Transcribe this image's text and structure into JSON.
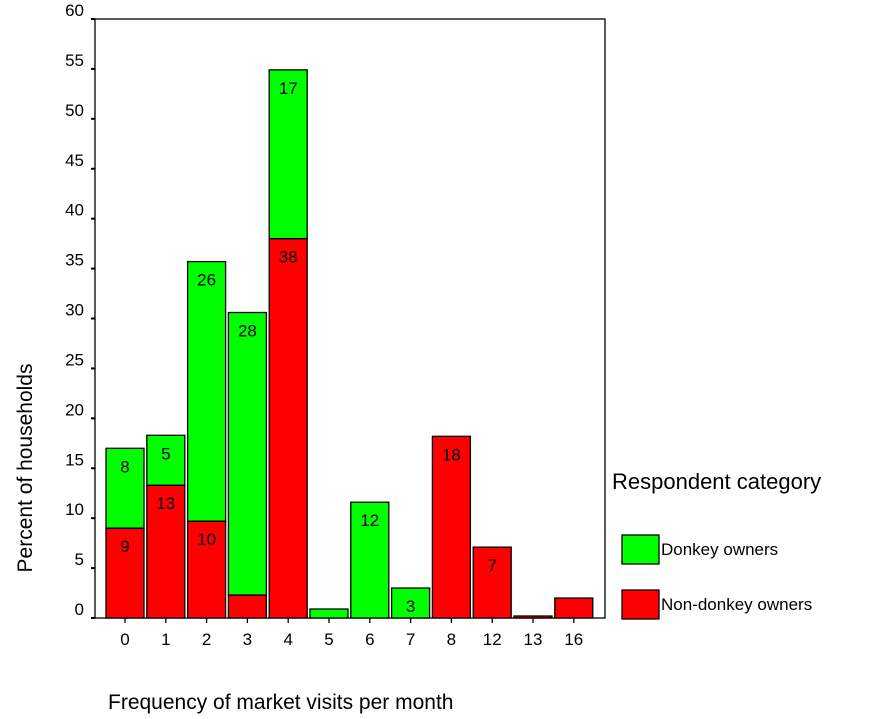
{
  "chart_data": {
    "type": "bar",
    "stacked": true,
    "categories": [
      "0",
      "1",
      "2",
      "3",
      "4",
      "5",
      "6",
      "7",
      "8",
      "12",
      "13",
      "16"
    ],
    "series": [
      {
        "name": "Non-donkey owners",
        "color": "#ff0000",
        "values": [
          9,
          13.3,
          9.7,
          2.3,
          38,
          0,
          0,
          0,
          18.2,
          7.1,
          0.2,
          2
        ],
        "labels": [
          "9",
          "13",
          "10",
          "",
          "38",
          "",
          "",
          "",
          "18",
          "7",
          "",
          ""
        ]
      },
      {
        "name": "Donkey owners",
        "color": "#00ff00",
        "values": [
          8,
          5,
          26,
          28.3,
          16.9,
          0.9,
          11.6,
          3,
          0,
          0,
          0,
          0
        ],
        "labels": [
          "8",
          "5",
          "26",
          "28",
          "17",
          "",
          "12",
          "3",
          "",
          "",
          "",
          ""
        ]
      }
    ],
    "xlabel": "Frequency of market visits per month",
    "ylabel": "Percent of households",
    "ylim": [
      0,
      60
    ],
    "yticks": [
      0,
      5,
      10,
      15,
      20,
      25,
      30,
      35,
      40,
      45,
      50,
      55,
      60
    ],
    "legend_title": "Respondent category",
    "legend_position": "right",
    "grid": false
  }
}
